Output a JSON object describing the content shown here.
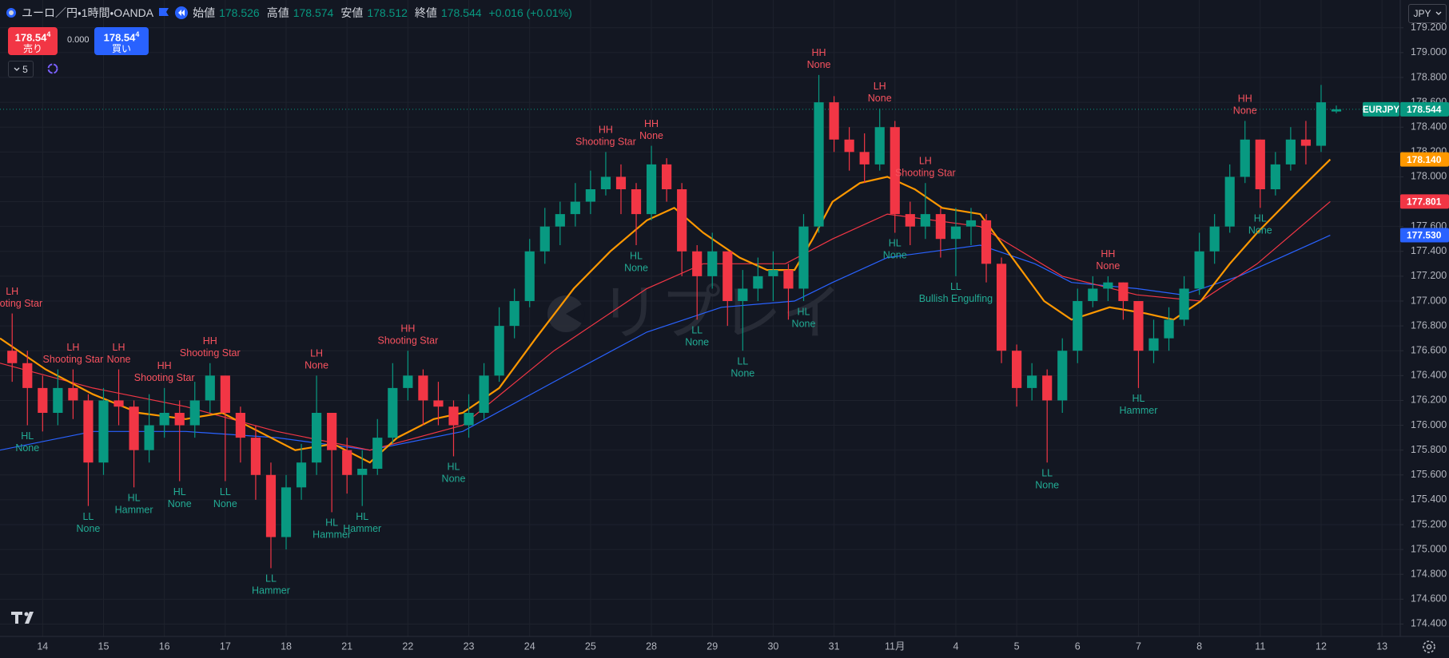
{
  "header": {
    "symbol": "ユーロ／円・1時間・OANDA",
    "ohlc": [
      {
        "label": "始値",
        "value": 178.526
      },
      {
        "label": "高値",
        "value": 178.574
      },
      {
        "label": "安値",
        "value": 178.512
      },
      {
        "label": "終値",
        "value": 178.544
      }
    ],
    "change": "+0.016 (+0.01%)"
  },
  "trade": {
    "sell": {
      "price": "178.54",
      "pip": "4",
      "label": "売り"
    },
    "spread": "0.000",
    "buy": {
      "price": "178.54",
      "pip": "4",
      "label": "買い"
    }
  },
  "indicators_count": 5,
  "currency": "JPY",
  "watermark": "リプレイ",
  "chart_data": {
    "type": "candlestick",
    "up_color": "#089981",
    "down_color": "#f23645",
    "grid": true,
    "xlim": [
      -0.8,
      91.2
    ],
    "ylim": [
      174.3,
      179.25
    ],
    "xticks": [
      {
        "value": 2,
        "label": "14"
      },
      {
        "value": 6,
        "label": "15"
      },
      {
        "value": 10,
        "label": "16"
      },
      {
        "value": 14,
        "label": "17"
      },
      {
        "value": 18,
        "label": "18"
      },
      {
        "value": 22,
        "label": "21"
      },
      {
        "value": 26,
        "label": "22"
      },
      {
        "value": 30,
        "label": "23"
      },
      {
        "value": 34,
        "label": "24"
      },
      {
        "value": 38,
        "label": "25"
      },
      {
        "value": 42,
        "label": "28"
      },
      {
        "value": 46,
        "label": "29"
      },
      {
        "value": 50,
        "label": "30"
      },
      {
        "value": 54,
        "label": "31"
      },
      {
        "value": 58,
        "label": "11月"
      },
      {
        "value": 62,
        "label": "4"
      },
      {
        "value": 66,
        "label": "5"
      },
      {
        "value": 70,
        "label": "6"
      },
      {
        "value": 74,
        "label": "7"
      },
      {
        "value": 78,
        "label": "8"
      },
      {
        "value": 82,
        "label": "11"
      },
      {
        "value": 86,
        "label": "12"
      },
      {
        "value": 90,
        "label": "13"
      }
    ],
    "yticks": [
      {
        "value": 174.4,
        "label": "174.400"
      },
      {
        "value": 174.6,
        "label": "174.600"
      },
      {
        "value": 174.8,
        "label": "174.800"
      },
      {
        "value": 175,
        "label": "175.000"
      },
      {
        "value": 175.2,
        "label": "175.200"
      },
      {
        "value": 175.4,
        "label": "175.400"
      },
      {
        "value": 175.6,
        "label": "175.600"
      },
      {
        "value": 175.8,
        "label": "175.800"
      },
      {
        "value": 176,
        "label": "176.000"
      },
      {
        "value": 176.2,
        "label": "176.200"
      },
      {
        "value": 176.4,
        "label": "176.400"
      },
      {
        "value": 176.6,
        "label": "176.600"
      },
      {
        "value": 176.8,
        "label": "176.800"
      },
      {
        "value": 177,
        "label": "177.000"
      },
      {
        "value": 177.2,
        "label": "177.200"
      },
      {
        "value": 177.4,
        "label": "177.400"
      },
      {
        "value": 177.6,
        "label": "177.600"
      },
      {
        "value": 177.8,
        "label": "177.800"
      },
      {
        "value": 178,
        "label": "178.000"
      },
      {
        "value": 178.2,
        "label": "178.200"
      },
      {
        "value": 178.4,
        "label": "178.400"
      },
      {
        "value": 178.6,
        "label": "178.600"
      },
      {
        "value": 178.8,
        "label": "178.800"
      },
      {
        "value": 179,
        "label": "179.000"
      },
      {
        "value": 179.2,
        "label": "179.200"
      }
    ],
    "open": [
      176.6,
      176.5,
      176.3,
      176.1,
      176.3,
      176.2,
      175.7,
      176.2,
      176.15,
      175.8,
      176.0,
      176.1,
      176.0,
      176.2,
      176.4,
      176.1,
      175.9,
      175.6,
      175.1,
      175.5,
      175.7,
      176.1,
      175.8,
      175.6,
      175.65,
      175.9,
      176.3,
      176.4,
      176.2,
      176.15,
      176.0,
      176.1,
      176.4,
      176.8,
      177.0,
      177.4,
      177.6,
      177.7,
      177.8,
      177.9,
      178.0,
      177.9,
      177.7,
      178.1,
      177.9,
      177.4,
      177.2,
      177.4,
      177.0,
      177.1,
      177.2,
      177.25,
      177.1,
      177.6,
      178.6,
      178.3,
      178.2,
      178.1,
      178.4,
      177.7,
      177.6,
      177.7,
      177.5,
      177.6,
      177.65,
      177.3,
      176.6,
      176.3,
      176.4,
      176.2,
      176.6,
      177.0,
      177.1,
      177.15,
      177.0,
      176.6,
      176.7,
      176.85,
      177.1,
      177.4,
      177.6,
      178.0,
      178.3,
      177.9,
      178.1,
      178.3,
      178.25,
      178.526
    ],
    "high": [
      176.9,
      176.6,
      176.4,
      176.45,
      176.45,
      176.25,
      176.3,
      176.45,
      176.2,
      176.25,
      176.3,
      176.2,
      176.35,
      176.5,
      176.4,
      176.15,
      176.0,
      175.7,
      175.6,
      175.85,
      176.4,
      176.1,
      175.9,
      175.8,
      176.05,
      176.5,
      176.6,
      176.45,
      176.35,
      176.2,
      176.25,
      176.5,
      176.95,
      177.1,
      177.5,
      177.75,
      177.8,
      177.95,
      178.05,
      178.2,
      178.1,
      177.95,
      178.25,
      178.15,
      177.95,
      177.45,
      177.55,
      177.4,
      177.25,
      177.35,
      177.4,
      177.3,
      177.7,
      178.82,
      178.65,
      178.4,
      178.35,
      178.55,
      178.45,
      177.8,
      177.95,
      177.75,
      177.75,
      177.75,
      177.7,
      177.35,
      176.65,
      176.5,
      176.45,
      176.7,
      177.1,
      177.2,
      177.2,
      177.15,
      177.0,
      176.85,
      176.95,
      177.2,
      177.55,
      177.7,
      178.1,
      178.45,
      178.3,
      178.2,
      178.4,
      178.45,
      178.74,
      178.574
    ],
    "low": [
      176.35,
      176.0,
      175.95,
      176.0,
      176.05,
      175.35,
      175.6,
      176.0,
      175.5,
      175.7,
      175.9,
      175.55,
      175.9,
      176.1,
      175.55,
      175.7,
      175.4,
      174.85,
      175.0,
      175.4,
      175.6,
      175.3,
      175.45,
      175.35,
      175.6,
      175.85,
      176.2,
      176.0,
      176.0,
      175.75,
      175.9,
      176.05,
      176.35,
      176.7,
      176.95,
      177.3,
      177.45,
      177.6,
      177.7,
      177.85,
      177.7,
      177.45,
      177.65,
      177.8,
      177.2,
      176.85,
      177.1,
      176.8,
      176.6,
      177.0,
      177.0,
      176.85,
      177.0,
      177.55,
      178.2,
      178.05,
      177.95,
      178.05,
      177.55,
      177.45,
      177.5,
      177.35,
      177.2,
      177.45,
      177.15,
      176.5,
      176.15,
      176.2,
      175.7,
      176.1,
      176.5,
      176.95,
      177.0,
      176.85,
      176.3,
      176.5,
      176.6,
      176.8,
      177.05,
      177.3,
      177.55,
      177.95,
      177.75,
      177.85,
      178.05,
      178.1,
      178.2,
      178.512
    ],
    "close": [
      176.5,
      176.3,
      176.1,
      176.3,
      176.2,
      175.7,
      176.2,
      176.15,
      175.8,
      176.0,
      176.1,
      176.0,
      176.2,
      176.4,
      176.1,
      175.9,
      175.6,
      175.1,
      175.5,
      175.7,
      176.1,
      175.8,
      175.6,
      175.65,
      175.9,
      176.3,
      176.4,
      176.2,
      176.15,
      176.0,
      176.1,
      176.4,
      176.8,
      177.0,
      177.4,
      177.6,
      177.7,
      177.8,
      177.9,
      178.0,
      177.9,
      177.7,
      178.1,
      177.9,
      177.4,
      177.2,
      177.4,
      177.0,
      177.1,
      177.2,
      177.25,
      177.1,
      177.6,
      178.6,
      178.3,
      178.2,
      178.1,
      178.4,
      177.7,
      177.6,
      177.7,
      177.5,
      177.6,
      177.65,
      177.3,
      176.6,
      176.3,
      176.4,
      176.2,
      176.6,
      177.0,
      177.1,
      177.15,
      177.0,
      176.6,
      176.7,
      176.85,
      177.1,
      177.4,
      177.6,
      178.0,
      178.3,
      177.9,
      178.1,
      178.3,
      178.25,
      178.6,
      178.544
    ],
    "lines": [
      {
        "color": "#2962ff",
        "width": 1.2,
        "x": [
          -0.8,
          5.3,
          11.4,
          17.4,
          23.5,
          29.6,
          35.6,
          41.7,
          46.6,
          51.4,
          53.9,
          57.5,
          63.6,
          67.2,
          69.6,
          73.9,
          76.9,
          80.6,
          86.6
        ],
        "values": [
          175.8,
          175.95,
          175.95,
          175.9,
          175.8,
          175.95,
          176.35,
          176.75,
          176.95,
          177.0,
          177.15,
          177.35,
          177.45,
          177.3,
          177.15,
          177.1,
          177.05,
          177.2,
          177.53
        ]
      },
      {
        "color": "#f23645",
        "width": 1.2,
        "x": [
          -0.8,
          5.3,
          11.4,
          17.4,
          23.5,
          29.6,
          35.6,
          41.7,
          45.4,
          50.8,
          53.9,
          57.5,
          63.6,
          69,
          73.9,
          78.1,
          81.8,
          86.6
        ],
        "values": [
          176.5,
          176.3,
          176.15,
          175.95,
          175.8,
          176.0,
          176.6,
          177.1,
          177.3,
          177.3,
          177.5,
          177.7,
          177.6,
          177.2,
          177.05,
          177.0,
          177.3,
          177.801
        ]
      },
      {
        "color": "#ff9800",
        "width": 2.2,
        "x": [
          -0.8,
          2.2,
          5.3,
          8.3,
          11.4,
          13.8,
          16.2,
          18.6,
          21.1,
          23.5,
          25.3,
          27.7,
          29.6,
          32,
          34.4,
          36.9,
          39.3,
          41.7,
          43.5,
          45.4,
          47.8,
          49.6,
          51.4,
          52.6,
          53.9,
          55.7,
          57.5,
          59.3,
          61.1,
          63.6,
          66,
          67.8,
          69.6,
          72.1,
          74.5,
          76.3,
          78.1,
          80,
          81.8,
          84.2,
          86.6
        ],
        "values": [
          176.7,
          176.45,
          176.25,
          176.1,
          176.05,
          176.1,
          175.95,
          175.8,
          175.85,
          175.7,
          175.9,
          176.05,
          176.1,
          176.3,
          176.7,
          177.1,
          177.4,
          177.65,
          177.75,
          177.55,
          177.35,
          177.25,
          177.25,
          177.5,
          177.8,
          177.95,
          178.0,
          177.9,
          177.75,
          177.7,
          177.3,
          177.0,
          176.85,
          176.95,
          176.9,
          176.85,
          177.0,
          177.3,
          177.55,
          177.85,
          178.14
        ]
      }
    ],
    "price_tags": [
      {
        "name": "EURJPY",
        "value": 178.544,
        "label": "178.544",
        "color": "#089981",
        "price_line": true
      },
      {
        "value": 178.14,
        "label": "178.140",
        "color": "#ff9800"
      },
      {
        "value": 177.801,
        "label": "177.801",
        "color": "#f23645"
      },
      {
        "value": 177.53,
        "label": "177.530",
        "color": "#2962ff"
      }
    ],
    "annotation_colors": {
      "high": "#f7525f",
      "low": "#22ab94"
    },
    "annotations": [
      {
        "candle": 0,
        "side": "high",
        "pivot": "LH",
        "pattern": "Shooting Star"
      },
      {
        "candle": 4,
        "side": "high",
        "pivot": "LH",
        "pattern": "Shooting Star"
      },
      {
        "candle": 7,
        "side": "high",
        "pivot": "LH",
        "pattern": "None"
      },
      {
        "candle": 10,
        "side": "high",
        "pivot": "HH",
        "pattern": "Shooting Star"
      },
      {
        "candle": 13,
        "side": "high",
        "pivot": "HH",
        "pattern": "Shooting Star"
      },
      {
        "candle": 20,
        "side": "high",
        "pivot": "LH",
        "pattern": "None"
      },
      {
        "candle": 26,
        "side": "high",
        "pivot": "HH",
        "pattern": "Shooting Star"
      },
      {
        "candle": 39,
        "side": "high",
        "pivot": "HH",
        "pattern": "Shooting Star"
      },
      {
        "candle": 42,
        "side": "high",
        "pivot": "HH",
        "pattern": "None"
      },
      {
        "candle": 53,
        "side": "high",
        "pivot": "HH",
        "pattern": "None"
      },
      {
        "candle": 57,
        "side": "high",
        "pivot": "LH",
        "pattern": "None"
      },
      {
        "candle": 60,
        "side": "high",
        "pivot": "LH",
        "pattern": "Shooting Star"
      },
      {
        "candle": 72,
        "side": "high",
        "pivot": "HH",
        "pattern": "None"
      },
      {
        "candle": 81,
        "side": "high",
        "pivot": "HH",
        "pattern": "None"
      },
      {
        "candle": 1,
        "side": "low",
        "pivot": "HL",
        "pattern": "None"
      },
      {
        "candle": 5,
        "side": "low",
        "pivot": "LL",
        "pattern": "None"
      },
      {
        "candle": 8,
        "side": "low",
        "pivot": "HL",
        "pattern": "Hammer"
      },
      {
        "candle": 11,
        "side": "low",
        "pivot": "HL",
        "pattern": "None"
      },
      {
        "candle": 14,
        "side": "low",
        "pivot": "LL",
        "pattern": "None"
      },
      {
        "candle": 17,
        "side": "low",
        "pivot": "LL",
        "pattern": "Hammer"
      },
      {
        "candle": 21,
        "side": "low",
        "pivot": "HL",
        "pattern": "Hammer"
      },
      {
        "candle": 23,
        "side": "low",
        "pivot": "HL",
        "pattern": "Hammer"
      },
      {
        "candle": 29,
        "side": "low",
        "pivot": "HL",
        "pattern": "None"
      },
      {
        "candle": 41,
        "side": "low",
        "pivot": "HL",
        "pattern": "None"
      },
      {
        "candle": 45,
        "side": "low",
        "pivot": "LL",
        "pattern": "None"
      },
      {
        "candle": 48,
        "side": "low",
        "pivot": "LL",
        "pattern": "None"
      },
      {
        "candle": 52,
        "side": "low",
        "pivot": "HL",
        "pattern": "None"
      },
      {
        "candle": 58,
        "side": "low",
        "pivot": "HL",
        "pattern": "None"
      },
      {
        "candle": 62,
        "side": "low",
        "pivot": "LL",
        "pattern": "Bullish Engulfing"
      },
      {
        "candle": 68,
        "side": "low",
        "pivot": "LL",
        "pattern": "None"
      },
      {
        "candle": 74,
        "side": "low",
        "pivot": "HL",
        "pattern": "Hammer"
      },
      {
        "candle": 82,
        "side": "low",
        "pivot": "HL",
        "pattern": "None"
      }
    ]
  }
}
